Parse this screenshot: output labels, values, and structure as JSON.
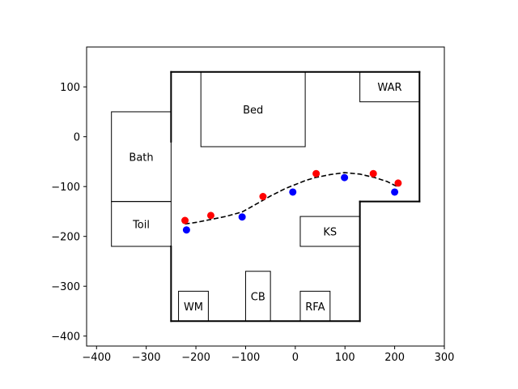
{
  "chart_data": {
    "type": "scatter",
    "xlim": [
      -420,
      300
    ],
    "ylim": [
      -420,
      180
    ],
    "xticks": [
      -400,
      -300,
      -200,
      -100,
      0,
      100,
      200,
      300
    ],
    "yticks": [
      100,
      0,
      -100,
      -200,
      -300,
      -400
    ],
    "grid": false,
    "legend": "none",
    "walls": [
      [
        [
          -250,
          130
        ],
        [
          250,
          130
        ]
      ],
      [
        [
          250,
          130
        ],
        [
          250,
          -130
        ]
      ],
      [
        [
          250,
          -130
        ],
        [
          130,
          -130
        ]
      ],
      [
        [
          130,
          -130
        ],
        [
          130,
          -370
        ]
      ],
      [
        [
          130,
          -370
        ],
        [
          -250,
          -370
        ]
      ],
      [
        [
          -250,
          -370
        ],
        [
          -250,
          -220
        ]
      ],
      [
        [
          -250,
          -10
        ],
        [
          -250,
          130
        ]
      ]
    ],
    "rooms": [
      {
        "label": "Bed",
        "x": [
          -190,
          20
        ],
        "y": [
          -20,
          130
        ]
      },
      {
        "label": "WAR",
        "x": [
          130,
          250
        ],
        "y": [
          70,
          130
        ]
      },
      {
        "label": "Bath",
        "x": [
          -370,
          -250
        ],
        "y": [
          -130,
          50
        ]
      },
      {
        "label": "Toil",
        "x": [
          -370,
          -250
        ],
        "y": [
          -220,
          -130
        ]
      },
      {
        "label": "KS",
        "x": [
          10,
          130
        ],
        "y": [
          -220,
          -160
        ]
      },
      {
        "label": "WM",
        "x": [
          -235,
          -175
        ],
        "y": [
          -370,
          -310
        ]
      },
      {
        "label": "CB",
        "x": [
          -100,
          -50
        ],
        "y": [
          -370,
          -270
        ]
      },
      {
        "label": "RFA",
        "x": [
          10,
          70
        ],
        "y": [
          -370,
          -310
        ]
      }
    ],
    "series": [
      {
        "color": "#ff0000",
        "style": "points",
        "x": [
          -222,
          -170,
          -65,
          42,
          157,
          207
        ],
        "y": [
          -168,
          -158,
          -120,
          -74,
          -74,
          -93
        ]
      },
      {
        "color": "#0000ff",
        "style": "points",
        "x": [
          -219,
          -107,
          -5,
          99,
          200
        ],
        "y": [
          -187,
          -161,
          -111,
          -82,
          -111
        ]
      },
      {
        "color": "#000000",
        "style": "dashed-line",
        "x": [
          -222,
          -200,
          -170,
          -140,
          -107,
          -80,
          -50,
          -20,
          0,
          20,
          40,
          70,
          99,
          130,
          160,
          185,
          207
        ],
        "y": [
          -175,
          -172,
          -166,
          -160,
          -151,
          -136,
          -119,
          -104,
          -96,
          -88,
          -82,
          -76,
          -72,
          -75,
          -82,
          -90,
          -101
        ]
      }
    ]
  }
}
